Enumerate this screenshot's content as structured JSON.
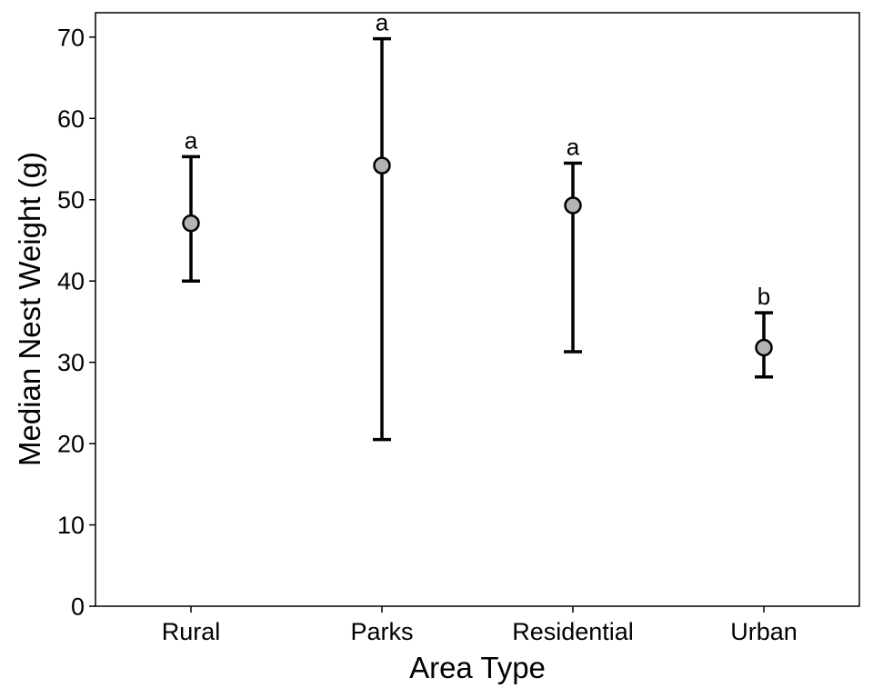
{
  "chart_data": {
    "type": "scatter",
    "title": "",
    "xlabel": "Area Type",
    "ylabel": "Median Nest Weight (g)",
    "categories": [
      "Rural",
      "Parks",
      "Residential",
      "Urban"
    ],
    "values": [
      47.1,
      54.2,
      49.3,
      31.8
    ],
    "error_low": [
      40.0,
      20.5,
      31.3,
      28.2
    ],
    "error_high": [
      55.3,
      69.8,
      54.5,
      36.1
    ],
    "significance_letters": [
      "a",
      "a",
      "a",
      "b"
    ],
    "ylim": [
      0,
      73
    ],
    "yticks": [
      0,
      10,
      20,
      30,
      40,
      50,
      60,
      70
    ],
    "grid": false,
    "legend": "none",
    "colors": {
      "point_fill": "#b3b3b3",
      "point_stroke": "#000000",
      "error_bar": "#000000",
      "axis": "#000000"
    }
  }
}
